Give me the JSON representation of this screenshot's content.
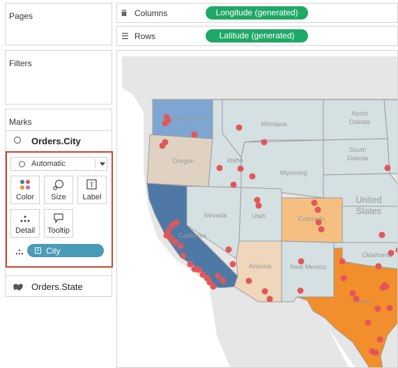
{
  "pages_panel": {
    "title": "Pages"
  },
  "filters_panel": {
    "title": "Filters"
  },
  "marks_panel": {
    "title": "Marks",
    "layer1_name": "Orders.City",
    "mark_type": "Automatic",
    "cards": {
      "color": "Color",
      "size": "Size",
      "label": "Label",
      "detail": "Detail",
      "tooltip": "Tooltip"
    },
    "detail_pill": "City",
    "layer2_name": "Orders.State"
  },
  "shelves": {
    "columns_label": "Columns",
    "columns_pill": "Longitude (generated)",
    "rows_label": "Rows",
    "rows_pill": "Latitude (generated)"
  },
  "map": {
    "country_label_line1": "United",
    "country_label_line2": "States",
    "state_labels": {
      "washington": "Washington",
      "oregon": "Oregon",
      "idaho": "Idaho",
      "montana": "Montana",
      "wyoming": "Wyoming",
      "nevada": "Nevada",
      "utah": "Utah",
      "colorado": "Colorado",
      "california": "California",
      "arizona": "Arizona",
      "new_mexico": "New Mexico",
      "texas": "Texas",
      "north_dakota": "North Dakota",
      "south_dakota": "South Dakota",
      "oklahoma": "Oklahoma"
    },
    "colors": {
      "city_dot": "#e15759",
      "california": "#4e79a7",
      "texas": "#f28e2b",
      "washington": "#7ea6d2",
      "colorado": "#f6bf82",
      "oregon": "#e0d2c2",
      "arizona": "#f0d6bb",
      "neutral": "#d4e0e2"
    }
  }
}
